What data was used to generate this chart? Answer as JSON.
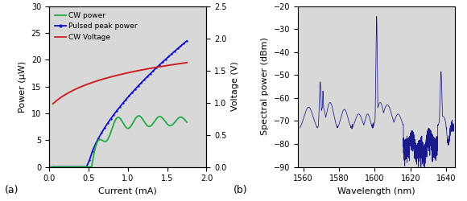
{
  "panel_a": {
    "xlabel": "Current (mA)",
    "ylabel_left": "Power (µW)",
    "ylabel_right": "Voltage (V)",
    "xlim": [
      0,
      2
    ],
    "ylim_left": [
      0,
      30
    ],
    "ylim_right": [
      0,
      2.5
    ],
    "yticks_left": [
      0,
      5,
      10,
      15,
      20,
      25,
      30
    ],
    "yticks_right": [
      0,
      0.5,
      1.0,
      1.5,
      2.0,
      2.5
    ],
    "xticks": [
      0,
      0.5,
      1.0,
      1.5,
      2.0
    ],
    "cw_color": "#22aa44",
    "pulsed_color": "#1111cc",
    "voltage_color": "#cc2222",
    "bg_color": "#d8d8d8"
  },
  "panel_b": {
    "xlabel": "Wavelength (nm)",
    "ylabel": "Spectral power (dBm)",
    "xlim": [
      1557,
      1645
    ],
    "ylim": [
      -90,
      -20
    ],
    "yticks": [
      -90,
      -80,
      -70,
      -60,
      -50,
      -40,
      -30,
      -20
    ],
    "xticks": [
      1560,
      1580,
      1600,
      1620,
      1640
    ],
    "line_color": "#1a1a8c",
    "bg_color": "#d8d8d8"
  },
  "label_fontsize": 8,
  "tick_fontsize": 7,
  "legend_fontsize": 6.5
}
